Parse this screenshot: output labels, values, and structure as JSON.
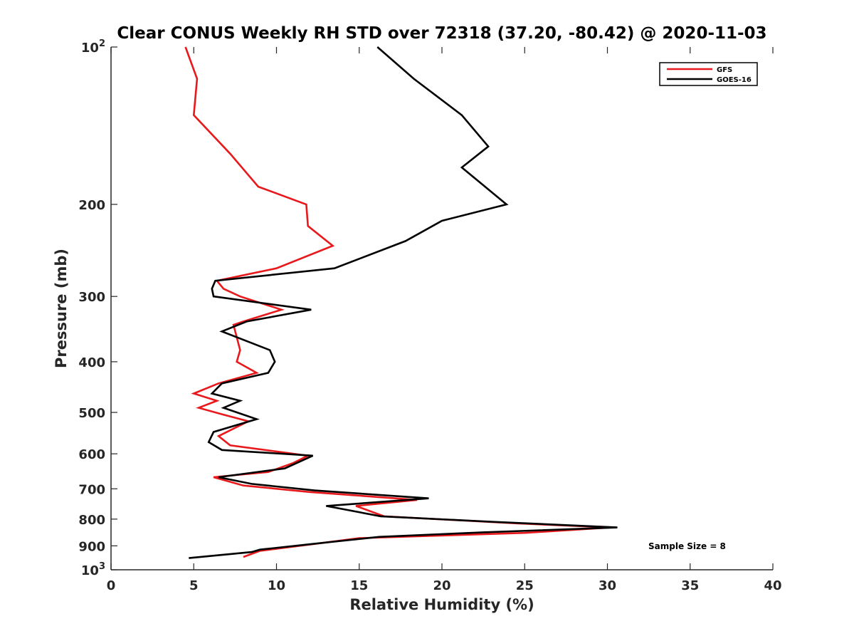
{
  "chart_data": {
    "type": "line",
    "title": "Clear CONUS Weekly RH STD over 72318 (37.20, -80.42) @ 2020-11-03",
    "xlabel": "Relative Humidity (%)",
    "ylabel": "Pressure (mb)",
    "xlim": [
      0,
      40
    ],
    "ylim": [
      100,
      1000
    ],
    "y_scale": "log",
    "y_reversed": true,
    "grid": false,
    "x_ticks": [
      0,
      5,
      10,
      15,
      20,
      25,
      30,
      35,
      40
    ],
    "x_tick_labels": [
      "0",
      "5",
      "10",
      "15",
      "20",
      "25",
      "30",
      "35",
      "40"
    ],
    "y_ticks": [
      100,
      200,
      300,
      400,
      500,
      600,
      700,
      800,
      900,
      1000
    ],
    "y_tick_labels": [
      {
        "base": "10",
        "sup": "2"
      },
      {
        "base": "200",
        "sup": ""
      },
      {
        "base": "300",
        "sup": ""
      },
      {
        "base": "400",
        "sup": ""
      },
      {
        "base": "500",
        "sup": ""
      },
      {
        "base": "600",
        "sup": ""
      },
      {
        "base": "700",
        "sup": ""
      },
      {
        "base": "800",
        "sup": ""
      },
      {
        "base": "900",
        "sup": ""
      },
      {
        "base": "10",
        "sup": "3"
      }
    ],
    "legend_position": "top-right",
    "series": [
      {
        "name": "GFS",
        "color": "#e8191c",
        "points": [
          [
            4.5,
            100
          ],
          [
            5.2,
            115
          ],
          [
            5.0,
            135
          ],
          [
            7.2,
            160
          ],
          [
            8.9,
            185
          ],
          [
            11.8,
            200
          ],
          [
            11.9,
            220
          ],
          [
            13.4,
            240
          ],
          [
            10.0,
            265
          ],
          [
            6.4,
            280
          ],
          [
            6.8,
            290
          ],
          [
            7.8,
            300
          ],
          [
            10.3,
            318
          ],
          [
            8.0,
            335
          ],
          [
            7.4,
            340
          ],
          [
            7.8,
            380
          ],
          [
            7.6,
            400
          ],
          [
            8.8,
            420
          ],
          [
            6.5,
            440
          ],
          [
            5.0,
            460
          ],
          [
            6.4,
            475
          ],
          [
            5.3,
            490
          ],
          [
            6.8,
            505
          ],
          [
            8.3,
            520
          ],
          [
            6.5,
            555
          ],
          [
            7.2,
            578
          ],
          [
            11.9,
            605
          ],
          [
            11.0,
            625
          ],
          [
            9.5,
            650
          ],
          [
            6.2,
            665
          ],
          [
            8.0,
            690
          ],
          [
            12.0,
            710
          ],
          [
            18.5,
            735
          ],
          [
            14.8,
            755
          ],
          [
            16.5,
            790
          ],
          [
            24.5,
            815
          ],
          [
            30.2,
            830
          ],
          [
            25.0,
            850
          ],
          [
            15.0,
            870
          ],
          [
            12.0,
            895
          ],
          [
            9.0,
            920
          ],
          [
            8.0,
            945
          ]
        ]
      },
      {
        "name": "GOES-16",
        "color": "#000000",
        "points": [
          [
            16.1,
            100
          ],
          [
            18.3,
            115
          ],
          [
            21.2,
            135
          ],
          [
            22.8,
            155
          ],
          [
            21.2,
            170
          ],
          [
            23.9,
            200
          ],
          [
            20.0,
            215
          ],
          [
            17.8,
            235
          ],
          [
            13.5,
            265
          ],
          [
            6.3,
            280
          ],
          [
            6.1,
            290
          ],
          [
            6.2,
            300
          ],
          [
            12.1,
            318
          ],
          [
            8.2,
            335
          ],
          [
            6.7,
            350
          ],
          [
            9.6,
            380
          ],
          [
            9.9,
            400
          ],
          [
            9.5,
            420
          ],
          [
            6.7,
            440
          ],
          [
            6.1,
            460
          ],
          [
            7.8,
            475
          ],
          [
            6.8,
            490
          ],
          [
            8.8,
            515
          ],
          [
            6.2,
            545
          ],
          [
            5.9,
            570
          ],
          [
            6.7,
            590
          ],
          [
            12.2,
            605
          ],
          [
            10.5,
            640
          ],
          [
            6.5,
            665
          ],
          [
            8.5,
            685
          ],
          [
            12.3,
            705
          ],
          [
            19.2,
            730
          ],
          [
            13.0,
            755
          ],
          [
            16.3,
            790
          ],
          [
            23.2,
            810
          ],
          [
            30.6,
            830
          ],
          [
            22.5,
            848
          ],
          [
            16.2,
            865
          ],
          [
            12.5,
            890
          ],
          [
            9.0,
            915
          ],
          [
            8.5,
            925
          ],
          [
            4.7,
            950
          ]
        ]
      }
    ],
    "annotations": [
      {
        "text": "Sample Size = 8",
        "x": 32.5,
        "y": 900
      }
    ]
  }
}
